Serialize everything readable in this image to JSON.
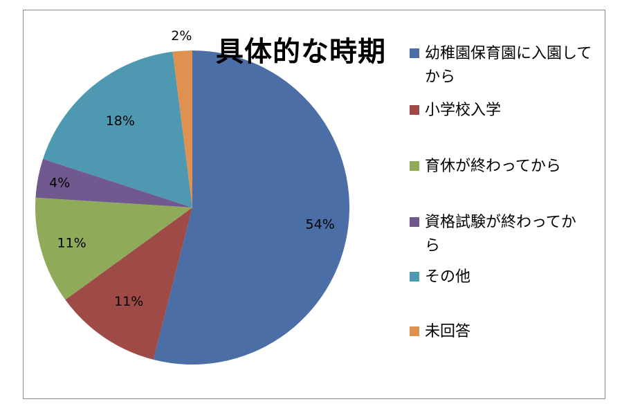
{
  "chart_data": {
    "type": "pie",
    "title": "具体的な時期",
    "start_angle": "top",
    "direction": "clockwise",
    "slices": [
      {
        "label": "幼稚園保育園に入園してから",
        "value": 54,
        "data_label": "54%",
        "color": "#4A6EA5"
      },
      {
        "label": "小学校入学",
        "value": 11,
        "data_label": "11%",
        "color": "#9E4A47"
      },
      {
        "label": "育休が終わってから",
        "value": 11,
        "data_label": "11%",
        "color": "#8FAB5A"
      },
      {
        "label": "資格試験が終わってから",
        "value": 4,
        "data_label": "4%",
        "color": "#71598F"
      },
      {
        "label": "その他",
        "value": 18,
        "data_label": "18%",
        "color": "#4F98B2"
      },
      {
        "label": "未回答",
        "value": 2,
        "data_label": "2%",
        "color": "#DF914F"
      }
    ],
    "legend_position": "right"
  }
}
